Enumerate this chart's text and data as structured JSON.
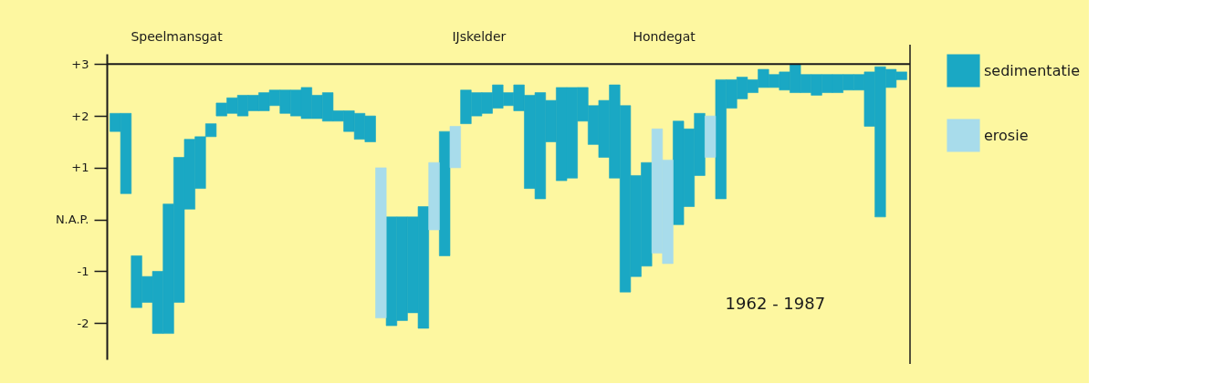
{
  "chart_data": {
    "type": "bar",
    "categories": [
      null,
      null,
      null,
      null,
      null,
      null,
      null,
      null,
      null,
      null,
      null,
      null,
      null,
      null,
      null,
      null,
      null,
      null,
      null,
      null,
      null,
      null,
      null,
      null,
      null,
      null,
      null,
      null,
      null,
      null,
      null,
      null,
      null,
      null,
      null,
      null,
      null,
      null,
      null,
      null,
      null,
      null,
      null,
      null,
      null,
      null,
      null,
      null,
      null,
      null,
      null,
      null,
      null,
      null,
      null,
      null,
      null,
      null,
      null,
      null,
      null,
      null,
      null,
      null,
      null,
      null,
      null,
      null,
      null,
      null,
      null,
      null,
      null,
      null,
      null
    ],
    "series": [
      {
        "name": "sedimentatie",
        "color": "#1aa8c4",
        "base": [
          1.7,
          0.5,
          -1.7,
          -1.6,
          -2.2,
          -2.2,
          -1.6,
          0.2,
          0.6,
          1.6,
          2.0,
          2.05,
          2.0,
          2.1,
          2.1,
          2.2,
          2.05,
          2.0,
          1.95,
          1.95,
          1.9,
          1.9,
          1.7,
          1.55,
          1.5,
          null,
          -2.05,
          -1.95,
          -1.8,
          -2.1,
          null,
          -0.7,
          null,
          1.85,
          2.0,
          2.05,
          2.15,
          2.2,
          2.1,
          0.6,
          0.4,
          1.5,
          0.75,
          0.8,
          1.9,
          1.45,
          1.2,
          0.8,
          -1.4,
          -1.1,
          -0.9,
          null,
          null,
          -0.1,
          0.25,
          0.85,
          null,
          0.4,
          2.15,
          2.33,
          2.45,
          2.55,
          2.55,
          2.5,
          2.45,
          2.45,
          2.4,
          2.45,
          2.45,
          2.5,
          2.5,
          1.8,
          0.05,
          2.55,
          2.7
        ],
        "values": [
          0.35,
          1.55,
          1.0,
          0.5,
          1.2,
          2.5,
          2.8,
          1.35,
          1.0,
          0.25,
          0.25,
          0.3,
          0.4,
          0.3,
          0.35,
          0.3,
          0.45,
          0.5,
          0.6,
          0.45,
          0.55,
          0.2,
          0.4,
          0.5,
          0.5,
          null,
          2.1,
          2.0,
          1.85,
          2.35,
          null,
          2.4,
          null,
          0.65,
          0.45,
          0.4,
          0.45,
          0.25,
          0.5,
          1.8,
          2.05,
          0.8,
          1.8,
          1.75,
          0.65,
          0.75,
          1.1,
          1.8,
          3.6,
          1.95,
          2.0,
          null,
          null,
          2.0,
          1.5,
          1.2,
          null,
          2.3,
          0.55,
          0.42,
          0.25,
          0.35,
          0.25,
          0.35,
          0.55,
          0.35,
          0.4,
          0.35,
          0.35,
          0.3,
          0.3,
          1.05,
          2.9,
          0.35,
          0.15
        ]
      },
      {
        "name": "erosie",
        "color": "#a8dceb",
        "base": [
          null,
          null,
          null,
          null,
          null,
          null,
          null,
          null,
          null,
          null,
          null,
          null,
          null,
          null,
          null,
          null,
          null,
          null,
          null,
          null,
          null,
          null,
          null,
          null,
          null,
          -1.9,
          null,
          null,
          null,
          null,
          -0.2,
          null,
          1.0,
          null,
          null,
          null,
          null,
          null,
          null,
          null,
          null,
          null,
          null,
          null,
          null,
          null,
          null,
          null,
          null,
          null,
          null,
          -0.65,
          -0.85,
          null,
          null,
          null,
          1.2,
          null,
          null,
          null,
          null,
          null,
          null,
          null,
          null,
          null,
          null,
          null,
          null,
          null,
          null,
          null,
          null,
          null,
          null
        ],
        "values": [
          null,
          null,
          null,
          null,
          null,
          null,
          null,
          null,
          null,
          null,
          null,
          null,
          null,
          null,
          null,
          null,
          null,
          null,
          null,
          null,
          null,
          null,
          null,
          null,
          null,
          2.9,
          null,
          null,
          null,
          null,
          1.3,
          null,
          0.8,
          null,
          null,
          null,
          null,
          null,
          null,
          null,
          null,
          null,
          null,
          null,
          null,
          null,
          null,
          null,
          null,
          null,
          null,
          2.4,
          2.0,
          null,
          null,
          null,
          0.8,
          null,
          null,
          null,
          null,
          null,
          null,
          null,
          null,
          null,
          null,
          null,
          null,
          null,
          null,
          null,
          null,
          null,
          null
        ]
      }
    ],
    "ylim": [
      -2.7,
      3.2
    ],
    "yticks": [
      {
        "value": 3,
        "label": "+3"
      },
      {
        "value": 2,
        "label": "+2"
      },
      {
        "value": 1,
        "label": "+1"
      },
      {
        "value": 0,
        "label": "N.A.P."
      },
      -1,
      -2
    ],
    "ref_lines": [
      {
        "axis": "y",
        "value": 3,
        "color": "#1a1a1a"
      }
    ],
    "annotations": [
      "Speelmansgat",
      "IJskelder",
      "Hondegat",
      "1962 - 1987"
    ],
    "tick_labels": "y",
    "grid": false,
    "legend": "right"
  }
}
